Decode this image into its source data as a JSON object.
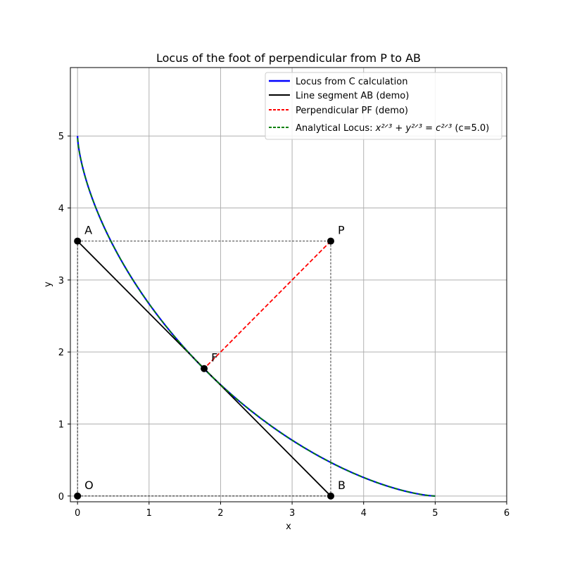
{
  "chart_data": {
    "type": "line",
    "title": "Locus of the foot of perpendicular from P to AB",
    "xlabel": "x",
    "ylabel": "y",
    "xlim": [
      -0.1,
      6
    ],
    "ylim": [
      -0.08,
      5.95
    ],
    "xticks": [
      0,
      1,
      2,
      3,
      4,
      5,
      6
    ],
    "yticks": [
      0,
      1,
      2,
      3,
      4,
      5
    ],
    "grid": true,
    "legend_position": "upper right",
    "c": 5.0,
    "series": [
      {
        "name": "Locus from C calculation",
        "color": "#0000ff",
        "style": "solid",
        "kind": "astroid",
        "x_range": [
          0,
          5
        ]
      },
      {
        "name": "Line segment AB (demo)",
        "color": "#000000",
        "style": "solid",
        "kind": "segment",
        "from": "A",
        "to": "B"
      },
      {
        "name": "Perpendicular PF (demo)",
        "color": "#ff0000",
        "style": "dashed",
        "kind": "segment",
        "from": "P",
        "to": "F"
      },
      {
        "name": "Analytical Locus: x^{2/3} + y^{2/3} = c^{2/3} (c=5.0)",
        "legend_main": "Analytical Locus: ",
        "legend_eq": "x²ᐟ³ + y²ᐟ³ = c²ᐟ³",
        "legend_suffix": " (c=5.0)",
        "color": "#008000",
        "style": "dashed",
        "kind": "astroid",
        "x_range": [
          0,
          5
        ]
      }
    ],
    "points": [
      {
        "label": "A",
        "x": 0,
        "y": 3.54
      },
      {
        "label": "P",
        "x": 3.54,
        "y": 3.54
      },
      {
        "label": "F",
        "x": 1.77,
        "y": 1.77
      },
      {
        "label": "O",
        "x": 0,
        "y": 0
      },
      {
        "label": "B",
        "x": 3.54,
        "y": 0
      }
    ],
    "guide_lines": [
      {
        "from": "A",
        "to": "P"
      },
      {
        "from": "P",
        "to": "B"
      },
      {
        "from": "O",
        "to": "B"
      },
      {
        "from": "O",
        "to": "A"
      }
    ]
  }
}
